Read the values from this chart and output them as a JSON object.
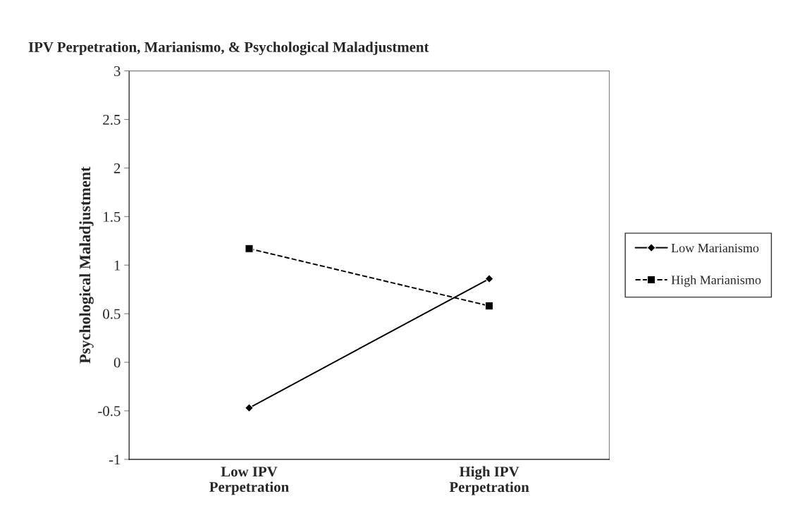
{
  "chart_data": {
    "type": "line",
    "title": "IPV Perpetration, Marianismo, & Psychological Maladjustment",
    "ylabel": "Psychological Maladjustment",
    "categories": [
      "Low IPV\nPerpetration",
      "High IPV\nPerpetration"
    ],
    "series": [
      {
        "name": "Low Marianismo",
        "color": "#000000",
        "values": [
          -0.47,
          0.86
        ],
        "marker": "diamond",
        "line_style": "solid"
      },
      {
        "name": "High Marianismo",
        "color": "#000000",
        "values": [
          1.17,
          0.58
        ],
        "marker": "square",
        "line_style": "dashed"
      }
    ],
    "ylim": [
      -1,
      3
    ],
    "yticks": [
      -1,
      -0.5,
      0,
      0.5,
      1,
      1.5,
      2,
      2.5,
      3
    ],
    "grid": false,
    "legend": "right"
  }
}
